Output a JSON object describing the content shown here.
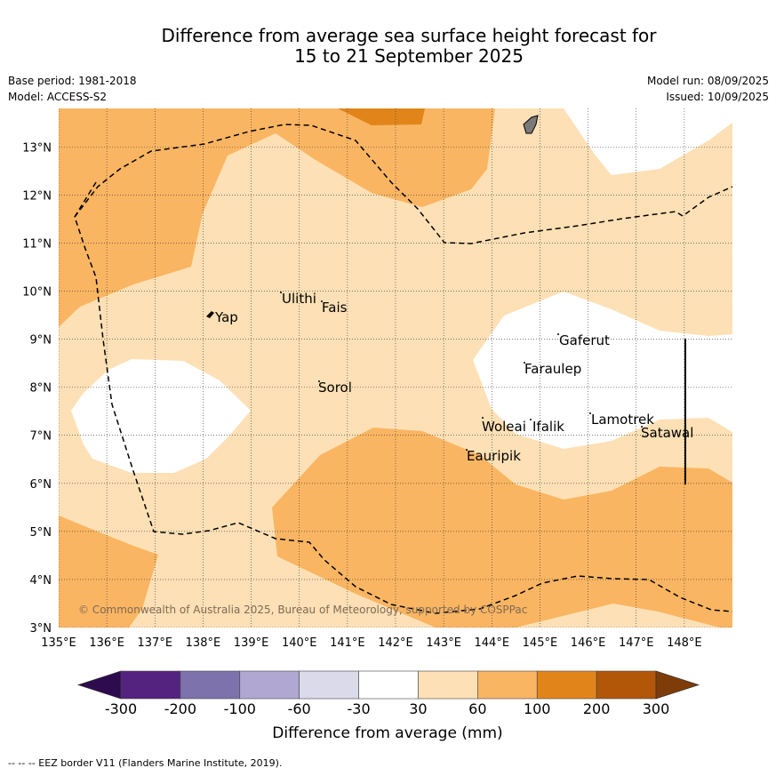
{
  "title": {
    "line1": "Difference from average sea surface height forecast for",
    "line2": "15 to 21 September 2025"
  },
  "meta": {
    "base_period": "Base period: 1981-2018",
    "model": "Model: ACCESS-S2",
    "model_run": "Model run: 08/09/2025",
    "issued": "Issued: 10/09/2025"
  },
  "map": {
    "lon_labels": [
      "135°E",
      "136°E",
      "137°E",
      "138°E",
      "139°E",
      "140°E",
      "141°E",
      "142°E",
      "143°E",
      "144°E",
      "145°E",
      "146°E",
      "147°E",
      "148°E"
    ],
    "lat_labels": [
      "3°N",
      "4°N",
      "5°N",
      "6°N",
      "7°N",
      "8°N",
      "9°N",
      "10°N",
      "11°N",
      "12°N",
      "13°N"
    ],
    "extent": {
      "lon": [
        135,
        149
      ],
      "lat": [
        3,
        13.8
      ]
    },
    "places": [
      "Yap",
      "Ulithi",
      "Fais",
      "Sorol",
      "Gaferut",
      "Faraulep",
      "Woleai",
      "Ifalik",
      "Lamotrek",
      "Satawal",
      "Eauripik"
    ],
    "copyright": "© Commonwealth of Australia 2025, Bureau of Meteorology, supported by COSPPac"
  },
  "colorbar": {
    "ticks": [
      "-300",
      "-200",
      "-100",
      "-60",
      "-30",
      "30",
      "60",
      "100",
      "200",
      "300"
    ],
    "label": "Difference from average (mm)",
    "colors": [
      "#2e0a4e",
      "#53237f",
      "#7e72ad",
      "#b0a8d2",
      "#dadaeb",
      "#ffffff",
      "#fde0b5",
      "#fab562",
      "#e1851b",
      "#b25707",
      "#7e3c08"
    ]
  },
  "footnote": "-- -- -- EEZ border V11 (Flanders Marine Institute, 2019)."
}
